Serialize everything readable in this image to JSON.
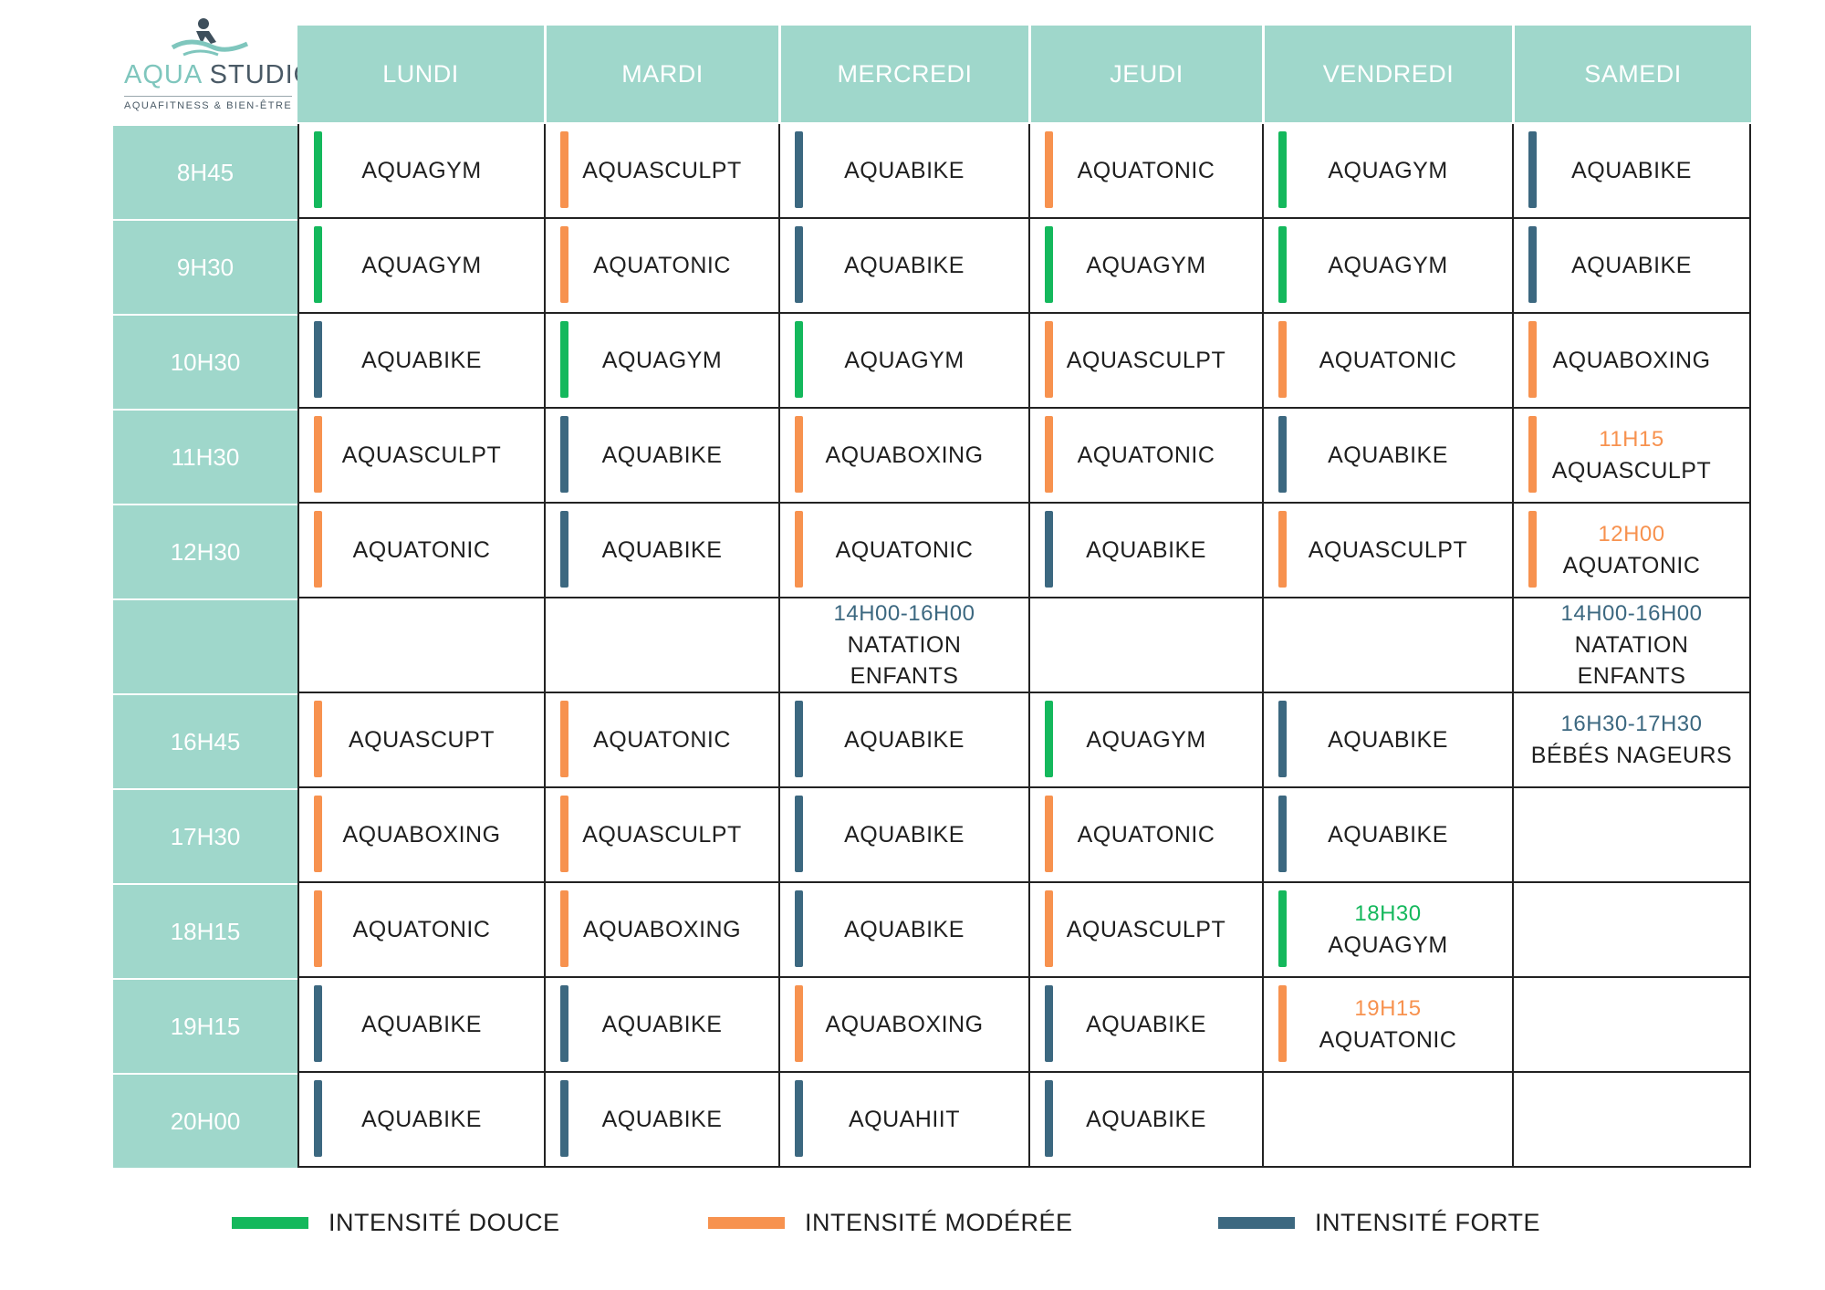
{
  "brand": {
    "name_part1": "AQUA",
    "name_part2": "STUDIO",
    "tagline": "AQUAFITNESS & BIEN-ÊTRE"
  },
  "colors": {
    "header": "#9fd7cb",
    "douce": "#14b85c",
    "moderee": "#f7924f",
    "forte": "#3c6880"
  },
  "days": [
    "LUNDI",
    "MARDI",
    "MERCREDI",
    "JEUDI",
    "VENDREDI",
    "SAMEDI"
  ],
  "times": [
    "8H45",
    "9H30",
    "10H30",
    "11H30",
    "12H30",
    "",
    "16H45",
    "17H30",
    "18H15",
    "19H15",
    "20H00"
  ],
  "schedule": [
    [
      {
        "label": "AQUAGYM",
        "intensity": "douce"
      },
      {
        "label": "AQUASCULPT",
        "intensity": "moderee"
      },
      {
        "label": "AQUABIKE",
        "intensity": "forte"
      },
      {
        "label": "AQUATONIC",
        "intensity": "moderee"
      },
      {
        "label": "AQUAGYM",
        "intensity": "douce"
      },
      {
        "label": "AQUABIKE",
        "intensity": "forte"
      }
    ],
    [
      {
        "label": "AQUAGYM",
        "intensity": "douce"
      },
      {
        "label": "AQUATONIC",
        "intensity": "moderee"
      },
      {
        "label": "AQUABIKE",
        "intensity": "forte"
      },
      {
        "label": "AQUAGYM",
        "intensity": "douce"
      },
      {
        "label": "AQUAGYM",
        "intensity": "douce"
      },
      {
        "label": "AQUABIKE",
        "intensity": "forte"
      }
    ],
    [
      {
        "label": "AQUABIKE",
        "intensity": "forte"
      },
      {
        "label": "AQUAGYM",
        "intensity": "douce"
      },
      {
        "label": "AQUAGYM",
        "intensity": "douce"
      },
      {
        "label": "AQUASCULPT",
        "intensity": "moderee"
      },
      {
        "label": "AQUATONIC",
        "intensity": "moderee"
      },
      {
        "label": "AQUABOXING",
        "intensity": "moderee"
      }
    ],
    [
      {
        "label": "AQUASCULPT",
        "intensity": "moderee"
      },
      {
        "label": "AQUABIKE",
        "intensity": "forte"
      },
      {
        "label": "AQUABOXING",
        "intensity": "moderee"
      },
      {
        "label": "AQUATONIC",
        "intensity": "moderee"
      },
      {
        "label": "AQUABIKE",
        "intensity": "forte"
      },
      {
        "label": "AQUASCULPT",
        "intensity": "moderee",
        "hint": "11H15"
      }
    ],
    [
      {
        "label": "AQUATONIC",
        "intensity": "moderee"
      },
      {
        "label": "AQUABIKE",
        "intensity": "forte"
      },
      {
        "label": "AQUATONIC",
        "intensity": "moderee"
      },
      {
        "label": "AQUABIKE",
        "intensity": "forte"
      },
      {
        "label": "AQUASCULPT",
        "intensity": "moderee"
      },
      {
        "label": "AQUATONIC",
        "intensity": "moderee",
        "hint": "12H00"
      }
    ],
    [
      {
        "label": "",
        "intensity": ""
      },
      {
        "label": "",
        "intensity": ""
      },
      {
        "label": "NATATION ENFANTS",
        "intensity": "",
        "hint": "14H00-16H00"
      },
      {
        "label": "",
        "intensity": ""
      },
      {
        "label": "",
        "intensity": ""
      },
      {
        "label": "NATATION ENFANTS",
        "intensity": "",
        "hint": "14H00-16H00"
      }
    ],
    [
      {
        "label": "AQUASCUPT",
        "intensity": "moderee"
      },
      {
        "label": "AQUATONIC",
        "intensity": "moderee"
      },
      {
        "label": "AQUABIKE",
        "intensity": "forte"
      },
      {
        "label": "AQUAGYM",
        "intensity": "douce"
      },
      {
        "label": "AQUABIKE",
        "intensity": "forte"
      },
      {
        "label": "BÉBÉS NAGEURS",
        "intensity": "",
        "hint": "16H30-17H30"
      }
    ],
    [
      {
        "label": "AQUABOXING",
        "intensity": "moderee"
      },
      {
        "label": "AQUASCULPT",
        "intensity": "moderee"
      },
      {
        "label": "AQUABIKE",
        "intensity": "forte"
      },
      {
        "label": "AQUATONIC",
        "intensity": "moderee"
      },
      {
        "label": "AQUABIKE",
        "intensity": "forte"
      },
      {
        "label": "",
        "intensity": ""
      }
    ],
    [
      {
        "label": "AQUATONIC",
        "intensity": "moderee"
      },
      {
        "label": "AQUABOXING",
        "intensity": "moderee"
      },
      {
        "label": "AQUABIKE",
        "intensity": "forte"
      },
      {
        "label": "AQUASCULPT",
        "intensity": "moderee"
      },
      {
        "label": "AQUAGYM",
        "intensity": "douce",
        "hint": "18H30"
      },
      {
        "label": "",
        "intensity": ""
      }
    ],
    [
      {
        "label": "AQUABIKE",
        "intensity": "forte"
      },
      {
        "label": "AQUABIKE",
        "intensity": "forte"
      },
      {
        "label": "AQUABOXING",
        "intensity": "moderee"
      },
      {
        "label": "AQUABIKE",
        "intensity": "forte"
      },
      {
        "label": "AQUATONIC",
        "intensity": "moderee",
        "hint": "19H15"
      },
      {
        "label": "",
        "intensity": ""
      }
    ],
    [
      {
        "label": "AQUABIKE",
        "intensity": "forte"
      },
      {
        "label": "AQUABIKE",
        "intensity": "forte"
      },
      {
        "label": "AQUAHIIT",
        "intensity": "forte"
      },
      {
        "label": "AQUABIKE",
        "intensity": "forte"
      },
      {
        "label": "",
        "intensity": ""
      },
      {
        "label": "",
        "intensity": ""
      }
    ]
  ],
  "legend": [
    {
      "key": "douce",
      "label": "INTENSITÉ DOUCE"
    },
    {
      "key": "moderee",
      "label": "INTENSITÉ MODÉRÉE"
    },
    {
      "key": "forte",
      "label": "INTENSITÉ FORTE"
    }
  ]
}
